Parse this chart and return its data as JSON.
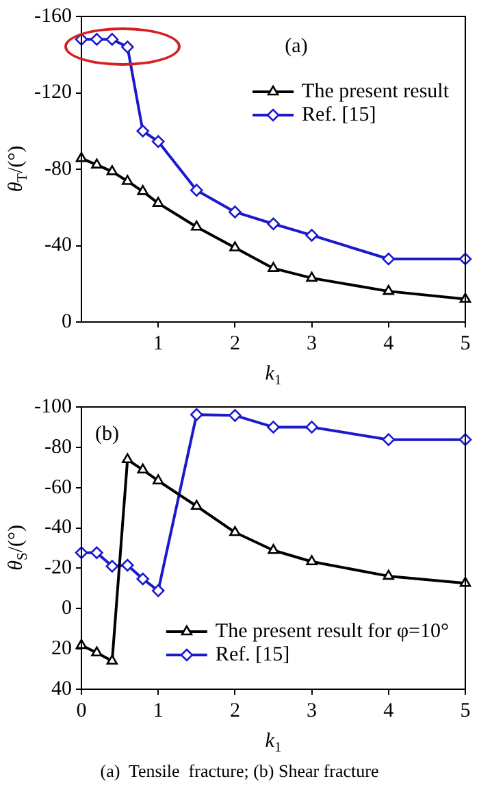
{
  "chart_data": [
    {
      "type": "line",
      "xlabel": "k$_{1}$",
      "ylabel": "θ$_{T}$/(°)",
      "annotations": [
        "(a)"
      ],
      "x": [
        0,
        0.2,
        0.4,
        0.6,
        0.8,
        1,
        1.5,
        2,
        2.5,
        3,
        4,
        5
      ],
      "xlim": [
        0,
        5
      ],
      "xticks": [
        1,
        2,
        3,
        4,
        5
      ],
      "ylim": [
        0,
        -160
      ],
      "yticks": [
        -160,
        -120,
        -80,
        -40,
        0
      ],
      "legend": "top right",
      "grid": false,
      "series": [
        {
          "name": "The present result",
          "color": "#000000",
          "marker": "triangle",
          "values": [
            -85.7,
            -82.3,
            -78.8,
            -73.7,
            -68.4,
            -62.2,
            -49.8,
            -38.9,
            -28.1,
            -23,
            -16.1,
            -12
          ]
        },
        {
          "name": "Ref. [15]",
          "color": "#1a1acc",
          "marker": "diamond",
          "values": [
            -148,
            -148,
            -148,
            -144,
            -100,
            -94.5,
            -69,
            -57.6,
            -51.4,
            -45.4,
            -33,
            -33
          ]
        }
      ]
    },
    {
      "type": "line",
      "xlabel": "k$_{1}$",
      "ylabel": "θ$_{S}$/(°)",
      "annotations": [
        "(b)",
        "(a)  Tensile  fracture; (b) Shear fracture"
      ],
      "x": [
        0,
        0.2,
        0.4,
        0.6,
        0.8,
        1,
        1.5,
        2,
        2.5,
        3,
        4,
        5
      ],
      "xlim": [
        0,
        5
      ],
      "xticks": [
        0,
        1,
        2,
        3,
        4,
        5
      ],
      "ylim": [
        40,
        -100
      ],
      "yticks": [
        -100,
        -80,
        -60,
        -40,
        -20,
        0,
        20,
        40
      ],
      "legend": "bottom right",
      "grid": false,
      "series": [
        {
          "name": "The present result for φ=10°",
          "color": "#000000",
          "marker": "triangle",
          "values": [
            18.2,
            21.9,
            26,
            -73.9,
            -68.8,
            -63.4,
            -50.8,
            -37.8,
            -28.9,
            -23.3,
            -16.1,
            -12.6
          ]
        },
        {
          "name": "Ref. [15]",
          "color": "#1a1acc",
          "marker": "diamond",
          "values": [
            -27.7,
            -27.7,
            -21,
            -21.5,
            -14.7,
            -8.9,
            -96.2,
            -95.8,
            -90,
            -90,
            -83.8,
            -83.8
          ]
        }
      ]
    }
  ]
}
